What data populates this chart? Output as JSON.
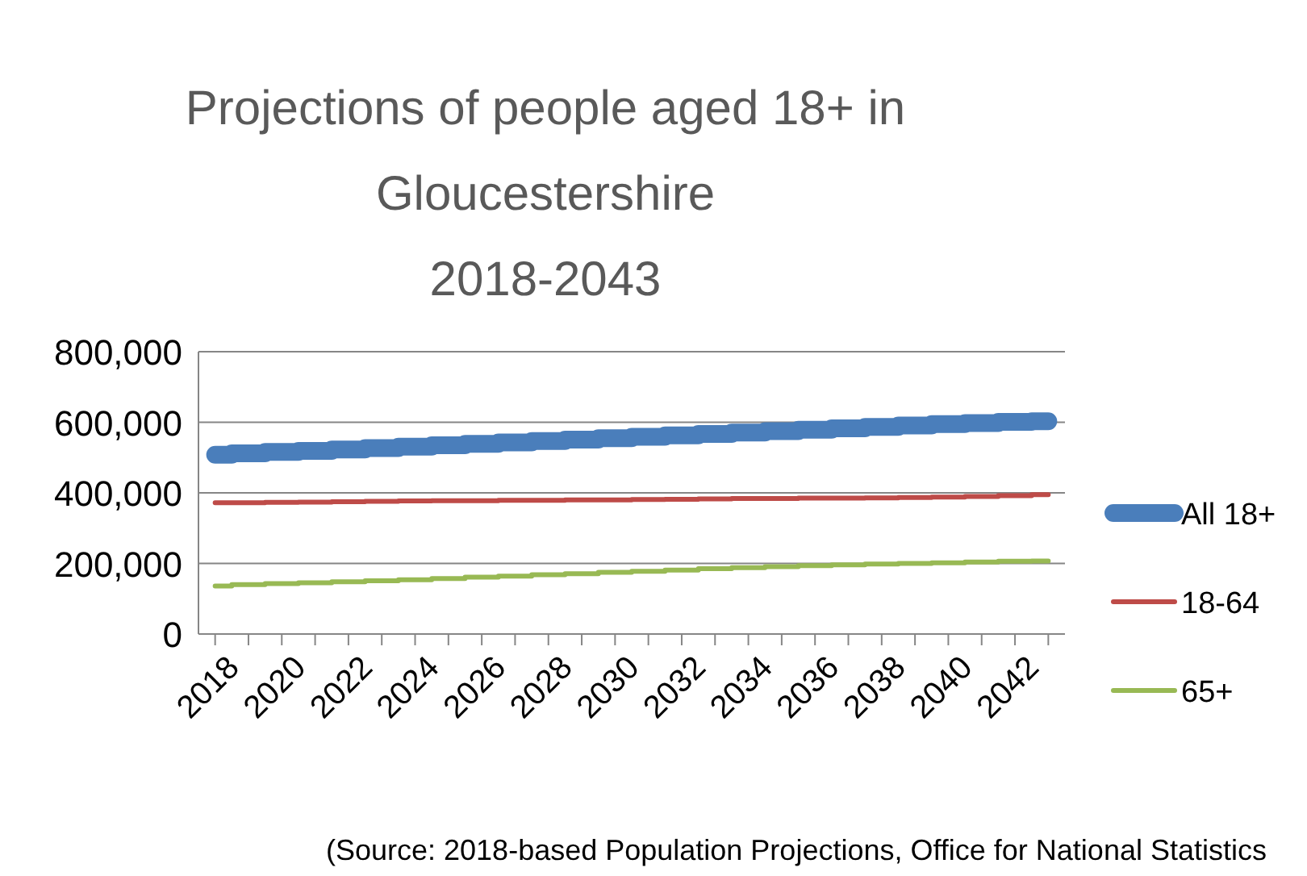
{
  "chart_data": {
    "type": "line",
    "title": "Projections of people aged 18+ in Gloucestershire 2018-2043",
    "categories": [
      "2018",
      null,
      "2020",
      null,
      "2022",
      null,
      "2024",
      null,
      "2026",
      null,
      "2028",
      null,
      "2030",
      null,
      "2032",
      null,
      "2034",
      null,
      "2036",
      null,
      "2038",
      null,
      "2040",
      null,
      "2042",
      null
    ],
    "series": [
      {
        "name": "All 18+",
        "color": "#4a7ebb",
        "values": [
          508000,
          512000,
          516000,
          519000,
          523000,
          527000,
          531000,
          535000,
          539000,
          543000,
          547000,
          551000,
          555000,
          559000,
          563000,
          567000,
          571000,
          575000,
          579000,
          583000,
          587000,
          591000,
          595000,
          598000,
          601000,
          603000
        ]
      },
      {
        "name": "18-64",
        "color": "#be4b48",
        "values": [
          372000,
          372000,
          373000,
          374000,
          375000,
          376000,
          377000,
          378000,
          378000,
          379000,
          379000,
          380000,
          380000,
          381000,
          382000,
          383000,
          384000,
          384000,
          385000,
          385000,
          386000,
          387000,
          388000,
          390000,
          392000,
          395000
        ]
      },
      {
        "name": "65+",
        "color": "#98b954",
        "values": [
          136000,
          140000,
          143000,
          145000,
          148000,
          151000,
          154000,
          157000,
          161000,
          164000,
          168000,
          171000,
          175000,
          178000,
          181000,
          185000,
          188000,
          191000,
          194000,
          196000,
          198000,
          200000,
          202000,
          204000,
          206000,
          207000
        ]
      }
    ],
    "ylim": [
      0,
      800000
    ],
    "yticks": [
      {
        "value": 0,
        "label": "0"
      },
      {
        "value": 200000,
        "label": "200,000"
      },
      {
        "value": 400000,
        "label": "400,000"
      },
      {
        "value": 600000,
        "label": "600,000"
      },
      {
        "value": 800000,
        "label": "800,000"
      }
    ],
    "grid": "y",
    "legend": "right",
    "marker": "none",
    "line_style": "solid",
    "annotations": [
      "(Source: 2018-based Population Projections, Office for National Statistics"
    ]
  }
}
